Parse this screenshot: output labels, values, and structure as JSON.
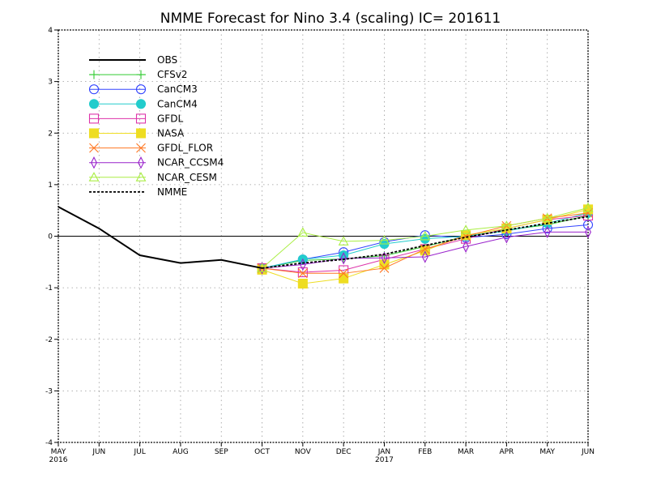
{
  "chart_data": {
    "type": "line",
    "title": "NMME Forecast for Nino 3.4 (scaling) IC= 201611",
    "xlabel": "",
    "ylabel": "",
    "categories": [
      "MAY",
      "JUN",
      "JUL",
      "AUG",
      "SEP",
      "OCT",
      "NOV",
      "DEC",
      "JAN",
      "FEB",
      "MAR",
      "APR",
      "MAY",
      "JUN"
    ],
    "year_labels": [
      {
        "index": 0,
        "label": "2016"
      },
      {
        "index": 8,
        "label": "2017"
      }
    ],
    "ylim": [
      -4,
      4
    ],
    "yticks": [
      -4,
      -3,
      -2,
      -1,
      0,
      1,
      2,
      3,
      4
    ],
    "grid": true,
    "legend_position": "top-left",
    "series": [
      {
        "name": "OBS",
        "color": "#000000",
        "marker": "none",
        "dash": "solid",
        "values": [
          0.57,
          0.15,
          -0.37,
          -0.52,
          -0.46,
          -0.62,
          null,
          null,
          null,
          null,
          null,
          null,
          null,
          null
        ]
      },
      {
        "name": "CFSv2",
        "color": "#33cc33",
        "marker": "plus",
        "dash": "solid",
        "values": [
          null,
          null,
          null,
          null,
          null,
          -0.62,
          -0.47,
          -0.44,
          -0.38,
          -0.2,
          0.0,
          0.12,
          0.22,
          0.4
        ]
      },
      {
        "name": "CanCM3",
        "color": "#3344ff",
        "marker": "circle-open",
        "dash": "solid",
        "values": [
          null,
          null,
          null,
          null,
          null,
          -0.62,
          -0.45,
          -0.31,
          -0.11,
          0.02,
          -0.03,
          0.04,
          0.15,
          0.22
        ]
      },
      {
        "name": "CanCM4",
        "color": "#22cccc",
        "marker": "circle-filled",
        "dash": "solid",
        "values": [
          null,
          null,
          null,
          null,
          null,
          -0.62,
          -0.45,
          -0.37,
          -0.15,
          -0.05,
          0.0,
          0.1,
          0.25,
          0.45
        ]
      },
      {
        "name": "GFDL",
        "color": "#dd33aa",
        "marker": "square-open",
        "dash": "solid",
        "values": [
          null,
          null,
          null,
          null,
          null,
          -0.62,
          -0.7,
          -0.66,
          -0.45,
          -0.25,
          -0.05,
          0.15,
          0.32,
          0.4
        ]
      },
      {
        "name": "NASA",
        "color": "#eedd22",
        "marker": "square-filled",
        "dash": "solid",
        "values": [
          null,
          null,
          null,
          null,
          null,
          -0.65,
          -0.92,
          -0.82,
          -0.55,
          -0.28,
          0.02,
          0.15,
          0.32,
          0.52
        ]
      },
      {
        "name": "GFDL_FLOR",
        "color": "#ff7722",
        "marker": "x",
        "dash": "solid",
        "values": [
          null,
          null,
          null,
          null,
          null,
          -0.62,
          -0.72,
          -0.72,
          -0.62,
          -0.25,
          0.0,
          0.2,
          0.35,
          0.45
        ]
      },
      {
        "name": "NCAR_CCSM4",
        "color": "#9922cc",
        "marker": "diamond-open",
        "dash": "solid",
        "values": [
          null,
          null,
          null,
          null,
          null,
          -0.62,
          -0.55,
          -0.43,
          -0.42,
          -0.4,
          -0.2,
          -0.02,
          0.08,
          0.08
        ]
      },
      {
        "name": "NCAR_CESM",
        "color": "#aaee44",
        "marker": "triangle-open",
        "dash": "solid",
        "values": [
          null,
          null,
          null,
          null,
          null,
          -0.62,
          0.07,
          -0.1,
          -0.08,
          0.0,
          0.12,
          0.2,
          0.35,
          0.55
        ]
      },
      {
        "name": "NMME",
        "color": "#000000",
        "marker": "none",
        "dash": "dashed",
        "values": [
          null,
          null,
          null,
          null,
          null,
          -0.62,
          -0.52,
          -0.45,
          -0.35,
          -0.18,
          -0.02,
          0.12,
          0.25,
          0.38
        ]
      }
    ]
  }
}
